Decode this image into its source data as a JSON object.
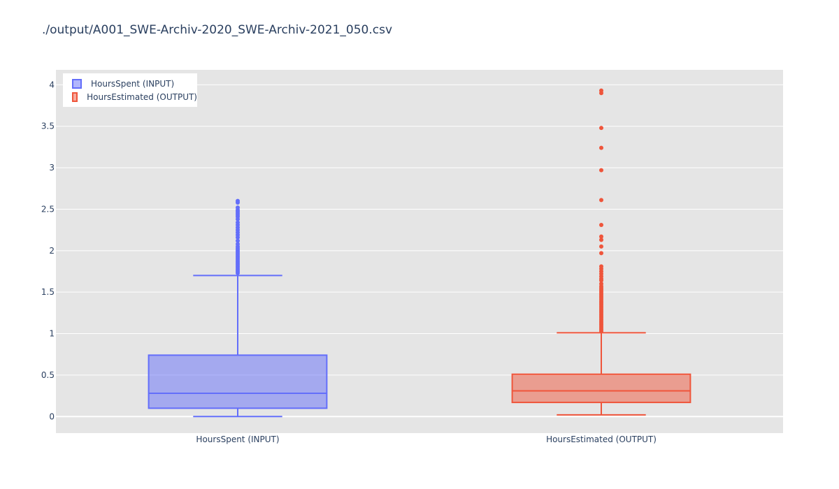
{
  "chart_data": {
    "type": "box",
    "title": "./output/A001_SWE-Archiv-2020_SWE-Archiv-2021_050.csv",
    "xlabel": "",
    "ylabel": "",
    "categories": [
      "HoursSpent (INPUT)",
      "HoursEstimated (OUTPUT)"
    ],
    "ylim": [
      -0.2,
      4.18
    ],
    "yticks": [
      0,
      0.5,
      1,
      1.5,
      2,
      2.5,
      3,
      3.5,
      4
    ],
    "ytick_labels": [
      "0",
      "0.5",
      "1",
      "1.5",
      "2",
      "2.5",
      "3",
      "3.5",
      "4"
    ],
    "grid": true,
    "legend_position": "top-left",
    "series": [
      {
        "name": "HoursSpent (INPUT)",
        "category": "HoursSpent (INPUT)",
        "color": "#636efa",
        "lowerfence": 0,
        "q1": 0.1,
        "median": 0.28,
        "q3": 0.74,
        "upperfence": 1.7,
        "outliers": [
          1.73,
          1.75,
          1.77,
          1.79,
          1.81,
          1.83,
          1.85,
          1.87,
          1.89,
          1.91,
          1.93,
          1.95,
          1.97,
          1.99,
          2.01,
          2.03,
          2.05,
          2.08,
          2.12,
          2.16,
          2.19,
          2.22,
          2.25,
          2.28,
          2.31,
          2.34,
          2.38,
          2.41,
          2.43,
          2.45,
          2.47,
          2.49,
          2.52,
          2.58,
          2.6
        ]
      },
      {
        "name": "HoursEstimated (OUTPUT)",
        "category": "HoursEstimated (OUTPUT)",
        "color": "#ef553b",
        "lowerfence": 0.02,
        "q1": 0.17,
        "median": 0.31,
        "q3": 0.51,
        "upperfence": 1.01,
        "outliers": [
          1.03,
          1.05,
          1.07,
          1.09,
          1.11,
          1.13,
          1.15,
          1.17,
          1.19,
          1.21,
          1.23,
          1.25,
          1.27,
          1.29,
          1.31,
          1.33,
          1.35,
          1.37,
          1.39,
          1.41,
          1.43,
          1.45,
          1.47,
          1.49,
          1.51,
          1.53,
          1.55,
          1.57,
          1.6,
          1.64,
          1.66,
          1.69,
          1.72,
          1.75,
          1.78,
          1.81,
          1.97,
          2.05,
          2.13,
          2.17,
          2.31,
          2.61,
          2.97,
          3.24,
          3.48,
          3.9,
          3.93
        ]
      }
    ]
  }
}
